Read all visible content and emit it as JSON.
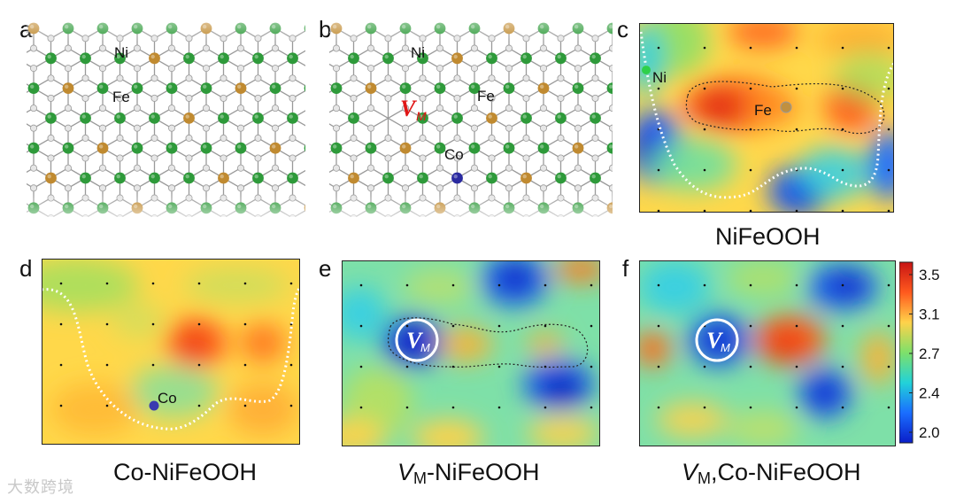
{
  "panels": {
    "a": {
      "letter": "a",
      "labels": {
        "ni": "Ni",
        "fe": "Fe"
      }
    },
    "b": {
      "letter": "b",
      "labels": {
        "ni": "Ni",
        "fe": "Fe",
        "co": "Co",
        "vm_main": "V",
        "vm_sub": "M"
      }
    },
    "c": {
      "letter": "c",
      "caption": "NiFeOOH",
      "labels": {
        "ni": "Ni",
        "fe": "Fe"
      }
    },
    "d": {
      "letter": "d",
      "caption": "Co-NiFeOOH",
      "labels": {
        "co": "Co"
      }
    },
    "e": {
      "letter": "e",
      "caption_main": "V",
      "caption_sub": "M",
      "caption_rest": "-NiFeOOH",
      "labels": {
        "vm_main": "V",
        "vm_sub": "M"
      }
    },
    "f": {
      "letter": "f",
      "caption_main": "V",
      "caption_sub": "M",
      "caption_rest": ",Co-NiFeOOH",
      "labels": {
        "vm_main": "V",
        "vm_sub": "M"
      }
    }
  },
  "colorbar": {
    "ticks": [
      "3.5",
      "3.1",
      "2.7",
      "2.4",
      "2.0"
    ],
    "colors": [
      "#c81414",
      "#ff5a1e",
      "#ffd24a",
      "#7ee06a",
      "#22d2d8",
      "#1a6eff",
      "#0a1ec8"
    ]
  },
  "atom_colors": {
    "ni": "#2e9a3a",
    "fe": "#c08a30",
    "co": "#2a2aa0",
    "o": "#e6e6e6",
    "bond": "#9a9a9a"
  },
  "watermark": "大数跨境"
}
